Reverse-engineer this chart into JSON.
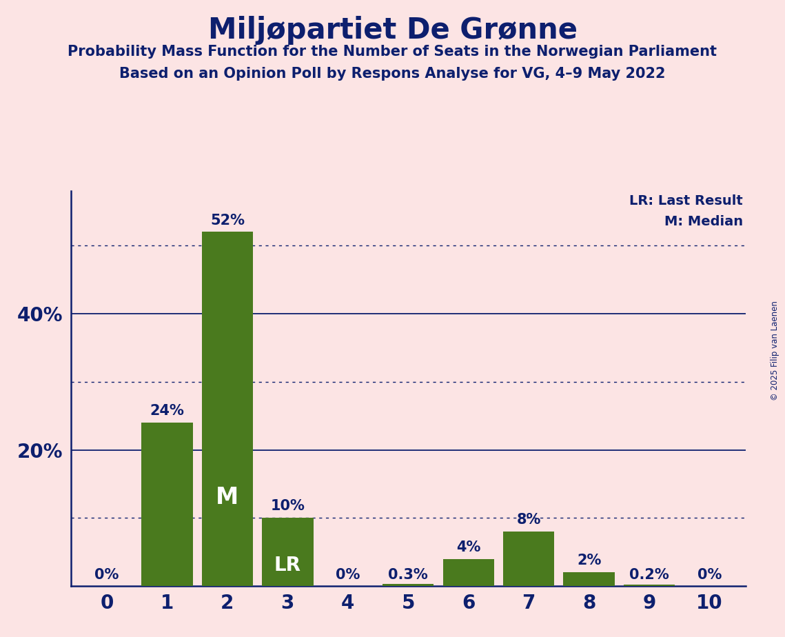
{
  "title": "Miljøpartiet De Grønne",
  "subtitle1": "Probability Mass Function for the Number of Seats in the Norwegian Parliament",
  "subtitle2": "Based on an Opinion Poll by Respons Analyse for VG, 4–9 May 2022",
  "copyright": "© 2025 Filip van Laenen",
  "categories": [
    0,
    1,
    2,
    3,
    4,
    5,
    6,
    7,
    8,
    9,
    10
  ],
  "values": [
    0.0,
    0.24,
    0.52,
    0.1,
    0.0,
    0.003,
    0.04,
    0.08,
    0.02,
    0.002,
    0.0
  ],
  "bar_labels": [
    "0%",
    "24%",
    "52%",
    "10%",
    "0%",
    "0.3%",
    "4%",
    "8%",
    "2%",
    "0.2%",
    "0%"
  ],
  "bar_color": "#4a7a1e",
  "background_color": "#fce4e4",
  "text_color": "#0d1f6e",
  "title_color": "#0d1f6e",
  "median_bar": 2,
  "lr_bar": 3,
  "legend_lr": "LR: Last Result",
  "legend_m": "M: Median",
  "solid_yticks": [
    0.2,
    0.4
  ],
  "dotted_yticks": [
    0.1,
    0.3,
    0.5
  ],
  "solid_ylabel_values": [
    0.2,
    0.4
  ],
  "solid_ylabel_texts": [
    "20%",
    "40%"
  ],
  "ylim": [
    0,
    0.58
  ]
}
